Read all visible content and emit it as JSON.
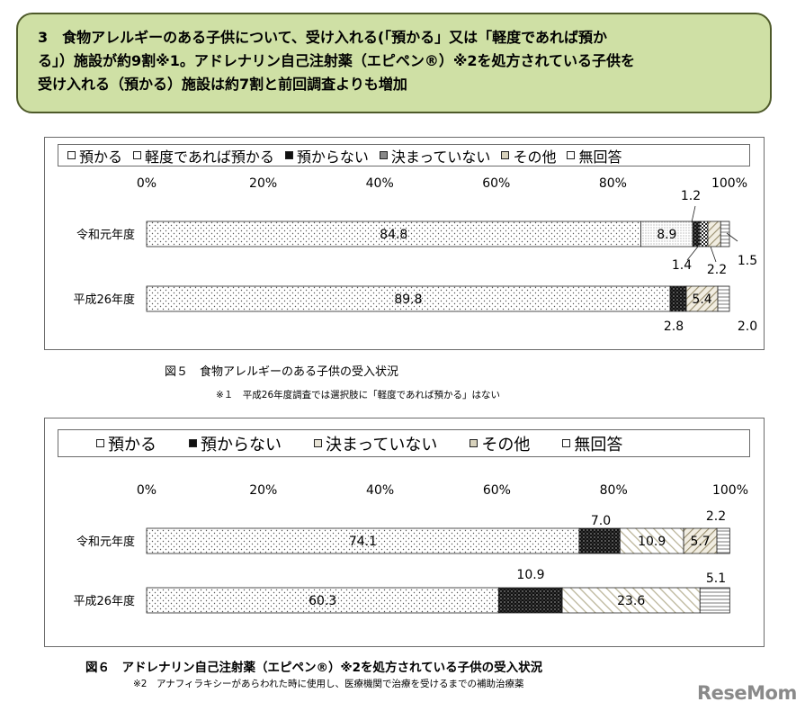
{
  "banner": {
    "line1": "3　食物アレルギーのある子供について、受け入れる(「預かる」又は「軽度であれば預か",
    "line2": "る」）施設が約9割※1。アドレナリン自己注射薬（エピペン®）※2を処方されている子供を",
    "line3": "受け入れる（預かる）施設は約7割と前回調査よりも増加"
  },
  "fig5": {
    "caption": "図５　食物アレルギーのある子供の受入状況",
    "note": "※１　平成26年度調査では選択肢に「軽度であれば預かる」はない"
  },
  "fig6": {
    "caption": "図６　アドレナリン自己注射薬（エピペン®）※2を処方されている子供の受入状況",
    "note": "※2　アナフィラキシーがあらわれた時に使用し、医療機関で治療を受けるまでの補助治療薬"
  },
  "watermark": "ReseMom",
  "chart_data": [
    {
      "type": "bar",
      "orientation": "horizontal-stacked",
      "categories": [
        "令和元年度",
        "平成26年度"
      ],
      "series": [
        {
          "name": "預かる",
          "values": [
            84.8,
            89.8
          ],
          "pattern": "dots"
        },
        {
          "name": "軽度であれば預かる",
          "values": [
            8.9,
            0
          ],
          "pattern": "fine-dots"
        },
        {
          "name": "預からない",
          "values": [
            1.2,
            2.8
          ],
          "pattern": "dark"
        },
        {
          "name": "決まっていない",
          "values": [
            1.4,
            0
          ],
          "pattern": "checker"
        },
        {
          "name": "その他",
          "values": [
            2.2,
            5.4
          ],
          "pattern": "diagonal"
        },
        {
          "name": "無回答",
          "values": [
            1.5,
            2.0
          ],
          "pattern": "horizontal"
        }
      ],
      "labels": [
        [
          "84.8",
          "8.9",
          "1.2",
          "1.4",
          "2.2",
          "1.5"
        ],
        [
          "89.8",
          "",
          "2.8",
          "",
          "5.4",
          "2.0"
        ]
      ],
      "xticks": [
        "0%",
        "20%",
        "40%",
        "60%",
        "80%",
        "100%"
      ],
      "xlim": [
        0,
        100
      ],
      "legend": "top"
    },
    {
      "type": "bar",
      "orientation": "horizontal-stacked",
      "categories": [
        "令和元年度",
        "平成26年度"
      ],
      "series": [
        {
          "name": "預かる",
          "values": [
            74.1,
            60.3
          ],
          "pattern": "dots"
        },
        {
          "name": "預からない",
          "values": [
            7.0,
            10.9
          ],
          "pattern": "dark"
        },
        {
          "name": "決まっていない",
          "values": [
            10.9,
            23.6
          ],
          "pattern": "diagonal-light"
        },
        {
          "name": "その他",
          "values": [
            5.7,
            0
          ],
          "pattern": "diagonal"
        },
        {
          "name": "無回答",
          "values": [
            2.2,
            5.1
          ],
          "pattern": "horizontal"
        }
      ],
      "labels": [
        [
          "74.1",
          "7.0",
          "10.9",
          "5.7",
          "2.2"
        ],
        [
          "60.3",
          "10.9",
          "23.6",
          "",
          "5.1"
        ]
      ],
      "xticks": [
        "0%",
        "20%",
        "40%",
        "60%",
        "80%",
        "100%"
      ],
      "xlim": [
        0,
        100
      ],
      "legend": "top"
    }
  ]
}
